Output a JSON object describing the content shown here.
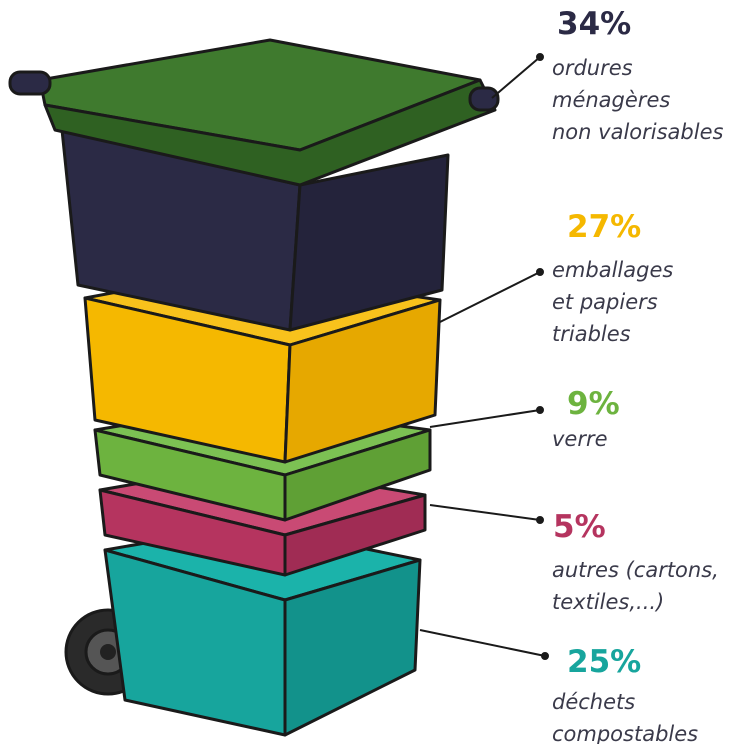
{
  "segments": [
    {
      "percent": "34%",
      "label": [
        "ordures",
        "ménagères",
        "non valorisables"
      ],
      "color": "#2b2a45"
    },
    {
      "percent": "27%",
      "label": [
        "emballages",
        "et papiers",
        "triables"
      ],
      "color": "#f5b800"
    },
    {
      "percent": "9%",
      "label": [
        "verre"
      ],
      "color": "#6db33f"
    },
    {
      "percent": "5%",
      "label": [
        "autres (cartons,",
        "textiles,...)"
      ],
      "color": "#b5345f"
    },
    {
      "percent": "25%",
      "label": [
        "déchets",
        "compostables"
      ],
      "color": "#17a59d"
    }
  ]
}
